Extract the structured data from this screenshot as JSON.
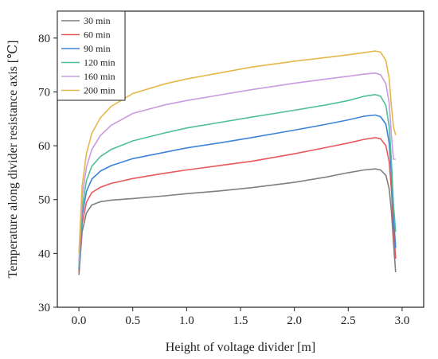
{
  "chart_data": {
    "type": "line",
    "title": "",
    "xlabel": "Height of voltage divider [m]",
    "ylabel": "Temperature  along divider resistance axis [℃]",
    "xlim": [
      -0.2,
      3.2
    ],
    "ylim": [
      30,
      85
    ],
    "xticks": [
      0.0,
      0.5,
      1.0,
      1.5,
      2.0,
      2.5,
      3.0
    ],
    "xtick_labels": [
      "0.0",
      "0.5",
      "1.0",
      "1.5",
      "2.0",
      "2.5",
      "3.0"
    ],
    "yticks": [
      30,
      40,
      50,
      60,
      70,
      80
    ],
    "ytick_labels": [
      "30",
      "40",
      "50",
      "60",
      "70",
      "80"
    ],
    "grid": false,
    "legend_position": "top-left",
    "series": [
      {
        "name": "30 min",
        "color": "#7f7f7f",
        "x": [
          0.0,
          0.03,
          0.07,
          0.12,
          0.2,
          0.3,
          0.5,
          0.8,
          1.0,
          1.3,
          1.6,
          2.0,
          2.3,
          2.5,
          2.65,
          2.75,
          2.8,
          2.85,
          2.88,
          2.9,
          2.92,
          2.94
        ],
        "y": [
          36.0,
          44.0,
          47.5,
          49.0,
          49.6,
          49.9,
          50.2,
          50.7,
          51.1,
          51.6,
          52.2,
          53.2,
          54.2,
          55.0,
          55.5,
          55.7,
          55.5,
          54.5,
          52.0,
          48.0,
          42.0,
          36.5
        ]
      },
      {
        "name": "60 min",
        "color": "#e8585c",
        "x": [
          0.0,
          0.03,
          0.07,
          0.12,
          0.2,
          0.3,
          0.5,
          0.8,
          1.0,
          1.3,
          1.6,
          2.0,
          2.3,
          2.5,
          2.65,
          2.75,
          2.8,
          2.85,
          2.88,
          2.9,
          2.92,
          2.94
        ],
        "y": [
          36.5,
          45.5,
          49.5,
          51.3,
          52.3,
          53.0,
          53.9,
          54.9,
          55.5,
          56.3,
          57.1,
          58.5,
          59.7,
          60.5,
          61.2,
          61.5,
          61.3,
          60.0,
          57.0,
          52.0,
          45.0,
          39.0
        ]
      },
      {
        "name": "90 min",
        "color": "#3e84d6",
        "x": [
          0.0,
          0.03,
          0.07,
          0.12,
          0.2,
          0.3,
          0.5,
          0.8,
          1.0,
          1.3,
          1.6,
          2.0,
          2.3,
          2.5,
          2.65,
          2.75,
          2.8,
          2.85,
          2.88,
          2.9,
          2.92,
          2.94
        ],
        "y": [
          37.0,
          47.0,
          51.5,
          53.8,
          55.3,
          56.3,
          57.6,
          58.8,
          59.6,
          60.5,
          61.5,
          62.9,
          64.0,
          64.8,
          65.5,
          65.7,
          65.4,
          64.0,
          60.5,
          55.0,
          47.0,
          41.0
        ]
      },
      {
        "name": "120 min",
        "color": "#4fbf9a",
        "x": [
          0.0,
          0.03,
          0.07,
          0.12,
          0.2,
          0.3,
          0.5,
          0.8,
          1.0,
          1.3,
          1.6,
          2.0,
          2.3,
          2.5,
          2.65,
          2.75,
          2.8,
          2.85,
          2.88,
          2.9,
          2.92,
          2.94
        ],
        "y": [
          37.5,
          48.5,
          53.5,
          56.2,
          58.0,
          59.3,
          60.9,
          62.4,
          63.3,
          64.3,
          65.3,
          66.6,
          67.6,
          68.4,
          69.2,
          69.5,
          69.2,
          67.5,
          63.5,
          57.5,
          49.0,
          44.0
        ]
      },
      {
        "name": "160 min",
        "color": "#c99be0",
        "x": [
          0.0,
          0.03,
          0.07,
          0.12,
          0.2,
          0.3,
          0.5,
          0.8,
          1.0,
          1.3,
          1.6,
          2.0,
          2.3,
          2.5,
          2.65,
          2.75,
          2.8,
          2.85,
          2.88,
          2.9,
          2.92,
          2.94
        ],
        "y": [
          38.5,
          50.5,
          56.0,
          59.3,
          61.9,
          63.8,
          66.0,
          67.6,
          68.4,
          69.4,
          70.4,
          71.6,
          72.4,
          72.9,
          73.3,
          73.5,
          73.2,
          71.5,
          68.0,
          62.0,
          57.5,
          57.5
        ]
      },
      {
        "name": "200 min",
        "color": "#e6b84a",
        "x": [
          0.0,
          0.03,
          0.07,
          0.12,
          0.2,
          0.3,
          0.5,
          0.8,
          1.0,
          1.3,
          1.6,
          2.0,
          2.3,
          2.5,
          2.65,
          2.75,
          2.8,
          2.85,
          2.88,
          2.9,
          2.92,
          2.94
        ],
        "y": [
          40.0,
          52.5,
          58.5,
          62.3,
          65.2,
          67.3,
          69.7,
          71.5,
          72.4,
          73.5,
          74.6,
          75.7,
          76.4,
          76.9,
          77.3,
          77.6,
          77.4,
          75.8,
          72.5,
          67.5,
          63.5,
          62.0
        ]
      }
    ]
  }
}
